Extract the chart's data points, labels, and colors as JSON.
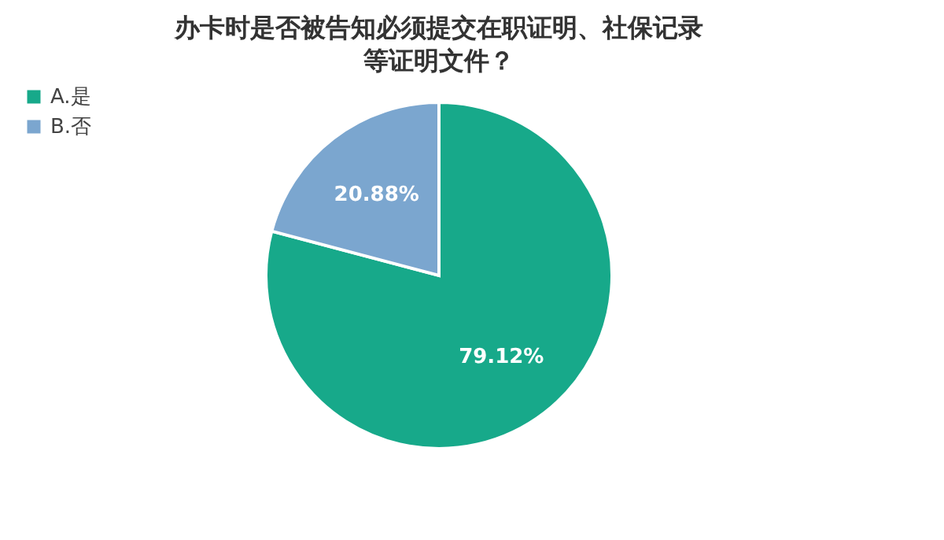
{
  "chart_data": {
    "type": "pie",
    "title": "办卡时是否被告知必须提交在职证明、社保记录等证明文件？",
    "categories": [
      "A.是",
      "B.否"
    ],
    "values": [
      79.12,
      20.88
    ],
    "colors": [
      "#17a98a",
      "#7ba6cf"
    ],
    "value_labels": [
      "79.12%",
      "20.88%"
    ],
    "legend": "left"
  }
}
